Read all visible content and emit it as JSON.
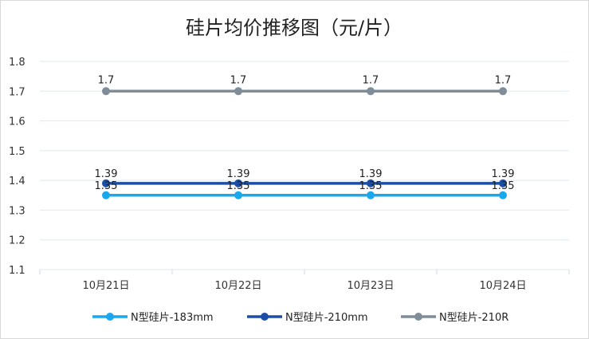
{
  "chart_data": {
    "type": "line",
    "title": "硅片均价推移图（元/片）",
    "xlabel": "",
    "ylabel": "",
    "categories": [
      "10月21日",
      "10月22日",
      "10月23日",
      "10月24日"
    ],
    "ylim": [
      1.1,
      1.8
    ],
    "yticks": [
      "1.1",
      "1.2",
      "1.3",
      "1.4",
      "1.5",
      "1.6",
      "1.7",
      "1.8"
    ],
    "grid": true,
    "legend_position": "bottom",
    "series": [
      {
        "name": "N型硅片-183mm",
        "values": [
          1.35,
          1.35,
          1.35,
          1.35
        ],
        "labels": [
          "1.35",
          "1.35",
          "1.35",
          "1.35"
        ],
        "color": "#1aa7ec"
      },
      {
        "name": "N型硅片-210mm",
        "values": [
          1.39,
          1.39,
          1.39,
          1.39
        ],
        "labels": [
          "1.39",
          "1.39",
          "1.39",
          "1.39"
        ],
        "color": "#1c4ea6"
      },
      {
        "name": "N型硅片-210R",
        "values": [
          1.7,
          1.7,
          1.7,
          1.7
        ],
        "labels": [
          "1.7",
          "1.7",
          "1.7",
          "1.7"
        ],
        "color": "#7f8c99"
      }
    ]
  }
}
